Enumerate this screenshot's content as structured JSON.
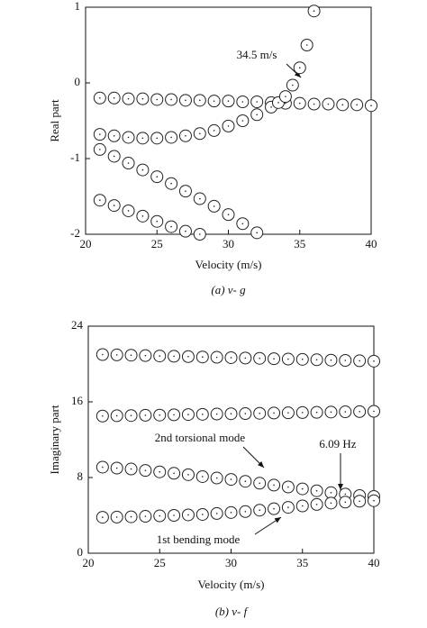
{
  "chart_data": [
    {
      "type": "scatter",
      "xlabel": "Velocity (m/s)",
      "ylabel": "Real part",
      "caption": "(a) v- g",
      "xlim": [
        20,
        40
      ],
      "xticks": [
        20,
        25,
        30,
        35,
        40
      ],
      "ylim": [
        -2,
        1
      ],
      "yticks": [
        -2,
        -1,
        0,
        1
      ],
      "annotations": [
        "34.5 m/s"
      ],
      "series": [
        {
          "color": "#222222",
          "x": [
            21,
            22,
            23,
            24,
            25,
            26,
            27,
            28,
            29,
            30,
            31,
            32,
            33,
            34,
            35,
            36,
            37,
            38,
            39,
            40
          ],
          "values": [
            -0.2,
            -0.2,
            -0.21,
            -0.21,
            -0.22,
            -0.22,
            -0.23,
            -0.23,
            -0.24,
            -0.24,
            -0.25,
            -0.25,
            -0.26,
            -0.27,
            -0.27,
            -0.28,
            -0.28,
            -0.29,
            -0.29,
            -0.3
          ]
        },
        {
          "color": "#222222",
          "x": [
            21,
            22,
            23,
            24,
            25,
            26,
            27,
            28,
            29,
            30,
            31,
            32,
            33,
            33.5,
            34,
            34.5,
            35,
            35.5,
            36
          ],
          "values": [
            -0.68,
            -0.7,
            -0.72,
            -0.73,
            -0.73,
            -0.72,
            -0.7,
            -0.67,
            -0.63,
            -0.57,
            -0.5,
            -0.42,
            -0.32,
            -0.26,
            -0.18,
            -0.03,
            0.2,
            0.5,
            0.95
          ]
        },
        {
          "color": "#222222",
          "x": [
            21,
            22,
            23,
            24,
            25,
            26,
            27,
            28,
            29,
            30,
            31,
            32
          ],
          "values": [
            -0.88,
            -0.97,
            -1.06,
            -1.15,
            -1.24,
            -1.33,
            -1.43,
            -1.53,
            -1.63,
            -1.74,
            -1.86,
            -1.98
          ]
        },
        {
          "color": "#222222",
          "x": [
            21,
            22,
            23,
            24,
            25,
            26,
            27,
            28
          ],
          "values": [
            -1.55,
            -1.62,
            -1.69,
            -1.76,
            -1.83,
            -1.9,
            -1.96,
            -2.0
          ]
        }
      ]
    },
    {
      "type": "scatter",
      "xlabel": "Velocity (m/s)",
      "ylabel": "Imaginary part",
      "caption": "(b) v- f",
      "xlim": [
        20,
        40
      ],
      "xticks": [
        20,
        25,
        30,
        35,
        40
      ],
      "ylim": [
        0,
        24
      ],
      "yticks": [
        0,
        8,
        16,
        24
      ],
      "annotations": [
        "2nd torsional mode",
        "6.09 Hz",
        "1st bending mode"
      ],
      "series": [
        {
          "color": "#222222",
          "x": [
            21,
            22,
            23,
            24,
            25,
            26,
            27,
            28,
            29,
            30,
            31,
            32,
            33,
            34,
            35,
            36,
            37,
            38,
            39,
            40
          ],
          "values": [
            21.0,
            20.96,
            20.93,
            20.89,
            20.85,
            20.82,
            20.78,
            20.74,
            20.71,
            20.67,
            20.63,
            20.6,
            20.56,
            20.52,
            20.49,
            20.45,
            20.41,
            20.38,
            20.34,
            20.3
          ]
        },
        {
          "color": "#222222",
          "x": [
            21,
            22,
            23,
            24,
            25,
            26,
            27,
            28,
            29,
            30,
            31,
            32,
            33,
            34,
            35,
            36,
            37,
            38,
            39,
            40
          ],
          "values": [
            14.5,
            14.53,
            14.55,
            14.58,
            14.6,
            14.63,
            14.66,
            14.68,
            14.71,
            14.74,
            14.76,
            14.79,
            14.82,
            14.84,
            14.87,
            14.89,
            14.92,
            14.95,
            14.97,
            15.0
          ]
        },
        {
          "color": "#222222",
          "x": [
            21,
            22,
            23,
            24,
            25,
            26,
            27,
            28,
            29,
            30,
            31,
            32,
            33,
            34,
            35,
            36,
            37,
            38,
            39,
            40
          ],
          "values": [
            9.1,
            9.0,
            8.9,
            8.75,
            8.6,
            8.45,
            8.3,
            8.1,
            7.95,
            7.8,
            7.6,
            7.4,
            7.2,
            7.0,
            6.8,
            6.6,
            6.4,
            6.25,
            6.1,
            6.0
          ]
        },
        {
          "color": "#222222",
          "x": [
            21,
            22,
            23,
            24,
            25,
            26,
            27,
            28,
            29,
            30,
            31,
            32,
            33,
            34,
            35,
            36,
            37,
            38,
            39,
            40
          ],
          "values": [
            3.8,
            3.82,
            3.85,
            3.9,
            3.95,
            4.0,
            4.05,
            4.1,
            4.2,
            4.3,
            4.4,
            4.55,
            4.7,
            4.85,
            5.0,
            5.15,
            5.3,
            5.4,
            5.5,
            5.55
          ]
        }
      ]
    }
  ]
}
